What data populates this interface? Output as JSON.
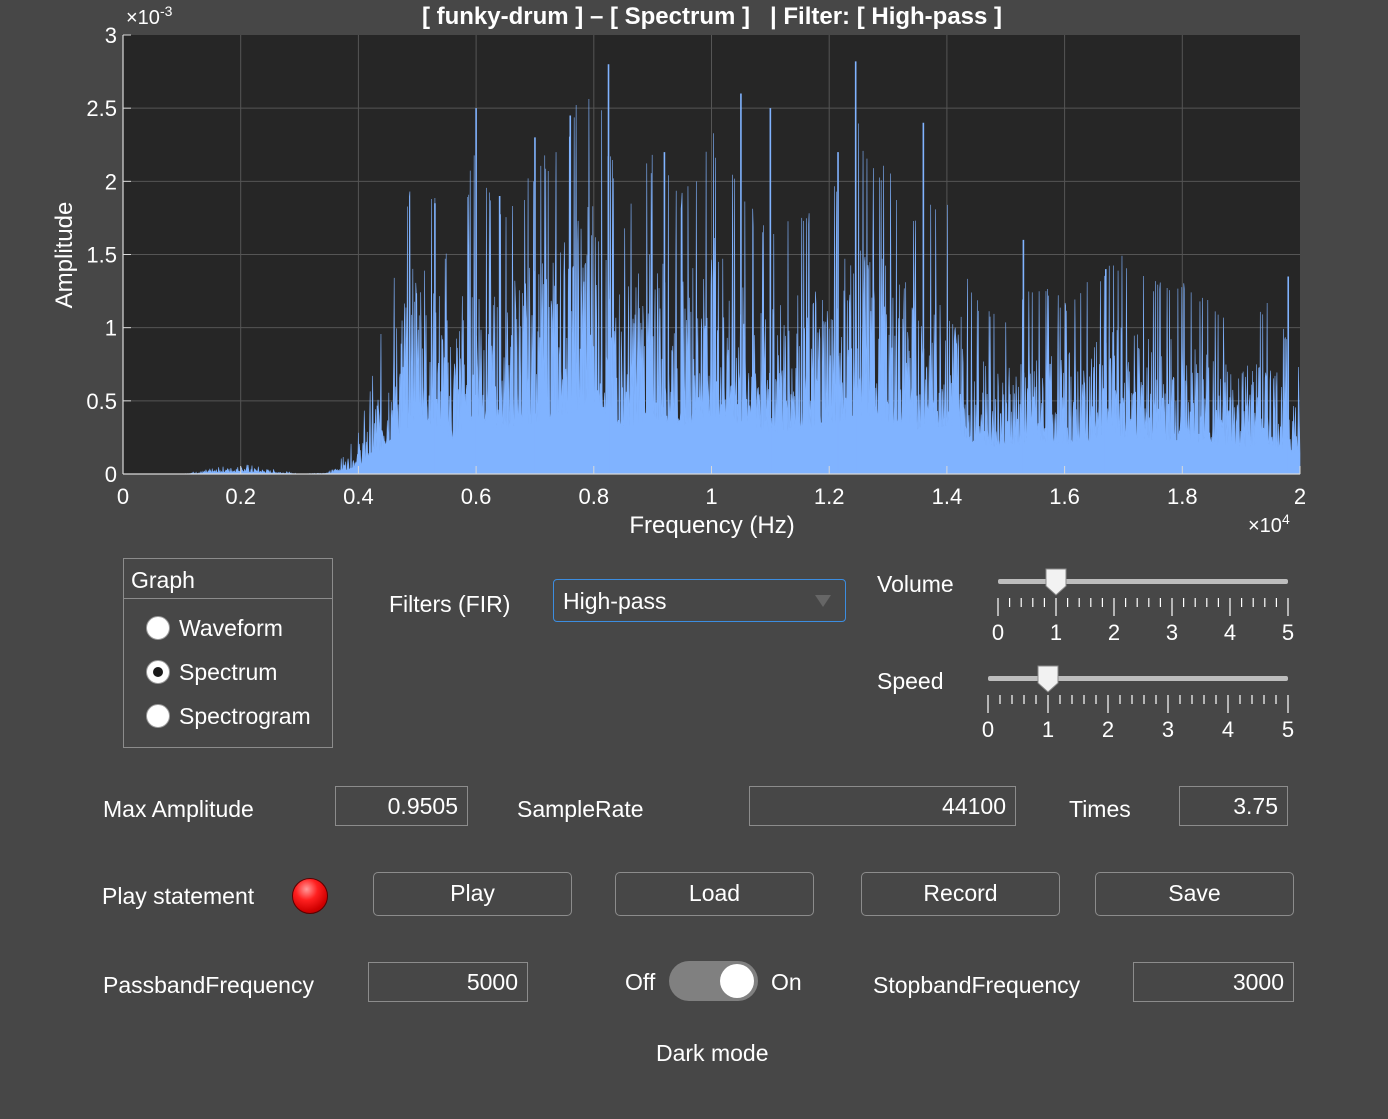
{
  "chart_data": {
    "type": "area",
    "title": "[ funky-drum ] – [ Spectrum ]   | Filter: [ High-pass ]",
    "xlabel": "Frequency (Hz)",
    "ylabel": "Amplitude",
    "x_exponent": "×10",
    "x_exponent_power": "4",
    "y_exponent": "×10",
    "y_exponent_power": "-3",
    "xlim": [
      0,
      20000
    ],
    "ylim": [
      0,
      0.003
    ],
    "x_ticks": [
      0,
      2000,
      4000,
      6000,
      8000,
      10000,
      12000,
      14000,
      16000,
      18000,
      20000
    ],
    "x_tick_labels": [
      "0",
      "0.2",
      "0.4",
      "0.6",
      "0.8",
      "1",
      "1.2",
      "1.4",
      "1.6",
      "1.8",
      "2"
    ],
    "y_ticks": [
      0,
      0.0005,
      0.001,
      0.0015,
      0.002,
      0.0025,
      0.003
    ],
    "y_tick_labels": [
      "0",
      "0.5",
      "1",
      "1.5",
      "2",
      "2.5",
      "3"
    ],
    "grid": true,
    "colors": {
      "plot_bg": "#262626",
      "fill": "#80b3ff",
      "axis": "#d9d9d9",
      "grid": "#555555"
    },
    "series": [
      {
        "x": [
          0,
          1000,
          2000,
          3000,
          3500,
          3800,
          4000,
          4200,
          4500,
          4800,
          5000,
          5300,
          5600,
          6000,
          6300,
          7000,
          7500,
          8000,
          8500,
          9000,
          9500,
          10000,
          10500,
          11000,
          11500,
          12000,
          12500,
          13000,
          13500,
          14000,
          14500,
          15000,
          15500,
          16000,
          16500,
          17000,
          17500,
          18000,
          18500,
          19000,
          19500,
          20000
        ],
        "values": [
          0,
          0,
          5e-05,
          0,
          1e-05,
          0.0001,
          0.0002,
          0.0004,
          0.0008,
          0.0012,
          0.0015,
          0.0013,
          0.0009,
          0.0016,
          0.0012,
          0.0014,
          0.0016,
          0.0019,
          0.0012,
          0.0015,
          0.0013,
          0.0016,
          0.0013,
          0.0011,
          0.0012,
          0.0013,
          0.0016,
          0.0014,
          0.0012,
          0.0013,
          0.0008,
          0.0007,
          0.0009,
          0.0008,
          0.0009,
          0.001,
          0.0009,
          0.0009,
          0.0008,
          0.0007,
          0.0008,
          0.0005
        ]
      }
    ],
    "peaks": [
      {
        "x": 5300,
        "y": 0.00185
      },
      {
        "x": 6000,
        "y": 0.0025
      },
      {
        "x": 6400,
        "y": 0.0019
      },
      {
        "x": 7000,
        "y": 0.0023
      },
      {
        "x": 7600,
        "y": 0.00245
      },
      {
        "x": 8250,
        "y": 0.0028
      },
      {
        "x": 9200,
        "y": 0.0022
      },
      {
        "x": 10500,
        "y": 0.0026
      },
      {
        "x": 11000,
        "y": 0.0025
      },
      {
        "x": 12150,
        "y": 0.0022
      },
      {
        "x": 12450,
        "y": 0.00282
      },
      {
        "x": 13600,
        "y": 0.0024
      },
      {
        "x": 15300,
        "y": 0.0016
      },
      {
        "x": 16700,
        "y": 0.0014
      },
      {
        "x": 19800,
        "y": 0.00135
      }
    ]
  },
  "graph_panel": {
    "title": "Graph",
    "options": [
      {
        "label": "Waveform",
        "selected": false
      },
      {
        "label": "Spectrum",
        "selected": true
      },
      {
        "label": "Spectrogram",
        "selected": false
      }
    ]
  },
  "filters": {
    "label": "Filters (FIR)",
    "selected": "High-pass"
  },
  "volume": {
    "label": "Volume",
    "value": 1,
    "min": 0,
    "max": 5,
    "tick_labels": [
      "0",
      "1",
      "2",
      "3",
      "4",
      "5"
    ]
  },
  "speed": {
    "label": "Speed",
    "value": 1,
    "min": 0,
    "max": 5,
    "tick_labels": [
      "0",
      "1",
      "2",
      "3",
      "4",
      "5"
    ]
  },
  "max_amplitude": {
    "label": "Max Amplitude",
    "value": "0.9505"
  },
  "sample_rate": {
    "label": "SampleRate",
    "value": "44100"
  },
  "times": {
    "label": "Times",
    "value": "3.75"
  },
  "play_statement": {
    "label": "Play statement",
    "color": "#ff0000"
  },
  "buttons": {
    "play": "Play",
    "load": "Load",
    "record": "Record",
    "save": "Save"
  },
  "passband": {
    "label": "PassbandFrequency",
    "value": "5000"
  },
  "stopband": {
    "label": "StopbandFrequency",
    "value": "3000"
  },
  "dark_mode": {
    "off_label": "Off",
    "on_label": "On",
    "label": "Dark mode",
    "state": "On"
  }
}
